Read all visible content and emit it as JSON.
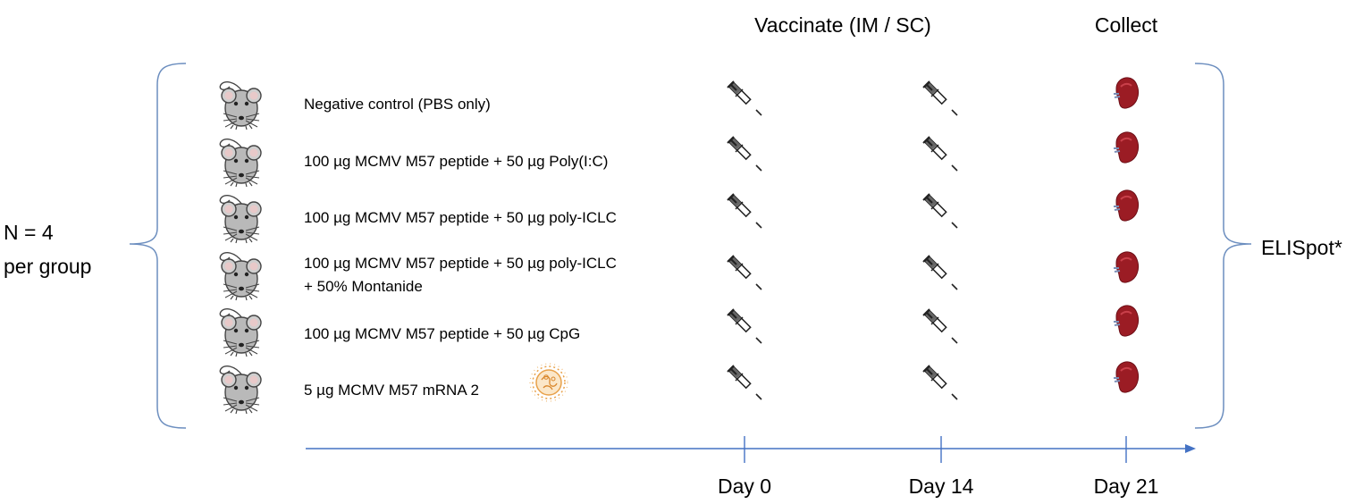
{
  "headers": {
    "vaccinate": "Vaccinate (IM / SC)",
    "collect": "Collect"
  },
  "left_label": {
    "line1": "N = 4",
    "line2": "per group"
  },
  "right_label": "ELISpot*",
  "groups": [
    {
      "label": "Negative control (PBS only)"
    },
    {
      "label": "100 µg MCMV M57 peptide + 50 µg Poly(I:C)"
    },
    {
      "label": "100 µg MCMV M57 peptide + 50 µg poly-ICLC"
    },
    {
      "label": "100 µg MCMV M57 peptide + 50 µg poly-ICLC",
      "label2": "+ 50% Montanide"
    },
    {
      "label": "100 µg MCMV M57 peptide + 50 µg CpG"
    },
    {
      "label": "5 µg MCMV M57 mRNA 2"
    }
  ],
  "timeline": {
    "days": [
      {
        "label": "Day 0",
        "event": "vaccinate"
      },
      {
        "label": "Day 14",
        "event": "vaccinate"
      },
      {
        "label": "Day 21",
        "event": "collect"
      }
    ]
  },
  "icons": {
    "subject": "mouse-icon",
    "injection": "syringe-icon",
    "collected_organ": "spleen-icon",
    "mrna_formulation": "lipid-nanoparticle-icon"
  },
  "colors": {
    "axis": "#4472c4",
    "bracket": "#6c8ebf",
    "mouse_body": "#b9b9b9",
    "spleen": "#9b1c24"
  }
}
